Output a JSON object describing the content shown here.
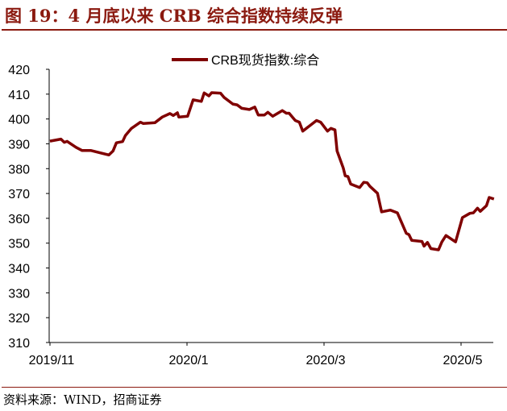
{
  "title": "图 19：4 月底以来 CRB 综合指数持续反弹",
  "source": "资料来源：WIND，招商证券",
  "colors": {
    "line": "#800000",
    "title": "#8b1a10"
  },
  "chart_data": {
    "type": "line",
    "title": "图 19：4 月底以来 CRB 综合指数持续反弹",
    "xlabel": "",
    "ylabel": "",
    "ylim": [
      310,
      420
    ],
    "yticks": [
      310,
      320,
      330,
      340,
      350,
      360,
      370,
      380,
      390,
      400,
      410,
      420
    ],
    "xunit": "months since 2019/11",
    "xticks": [
      {
        "x": 0,
        "label": "2019/11"
      },
      {
        "x": 2,
        "label": "2020/1"
      },
      {
        "x": 4,
        "label": "2020/3"
      },
      {
        "x": 6,
        "label": "2020/5"
      }
    ],
    "legend": {
      "position": "top-center"
    },
    "grid": false,
    "series": [
      {
        "name": "CRB现货指数:综合",
        "x": [
          0,
          0.16,
          0.21,
          0.25,
          0.38,
          0.47,
          0.6,
          0.86,
          0.92,
          0.97,
          1.06,
          1.1,
          1.19,
          1.32,
          1.36,
          1.53,
          1.64,
          1.75,
          1.8,
          1.86,
          1.88,
          2.01,
          2.09,
          2.21,
          2.25,
          2.32,
          2.36,
          2.49,
          2.54,
          2.67,
          2.73,
          2.8,
          2.91,
          2.99,
          3.04,
          3.13,
          3.18,
          3.25,
          3.39,
          3.45,
          3.49,
          3.58,
          3.64,
          3.69,
          3.89,
          3.95,
          4.05,
          4.1,
          4.16,
          4.19,
          4.28,
          4.31,
          4.35,
          4.39,
          4.52,
          4.58,
          4.63,
          4.67,
          4.78,
          4.84,
          4.97,
          5.07,
          5.2,
          5.24,
          5.28,
          5.43,
          5.46,
          5.51,
          5.56,
          5.67,
          5.72,
          5.78,
          5.92,
          6.02,
          6.13,
          6.18,
          6.24,
          6.28,
          6.37,
          6.41,
          6.48
        ],
        "y": [
          391.1,
          391.9,
          390.6,
          391.0,
          388.6,
          387.3,
          387.3,
          385.5,
          387.1,
          390.4,
          390.9,
          393.3,
          396.2,
          398.7,
          398.2,
          398.5,
          400.8,
          402.2,
          401.4,
          402.5,
          400.8,
          401.1,
          407.7,
          407.1,
          410.5,
          409.3,
          410.6,
          410.4,
          408.7,
          406.0,
          405.7,
          404.3,
          403.8,
          404.8,
          401.6,
          401.6,
          402.7,
          401.1,
          403.4,
          402.3,
          402.3,
          399.4,
          398.7,
          395.1,
          399.4,
          398.7,
          395.1,
          396.2,
          395.6,
          387.1,
          380.3,
          377.1,
          376.8,
          373.8,
          372.4,
          374.5,
          374.3,
          372.9,
          370.1,
          362.6,
          363.3,
          362.2,
          354.0,
          353.4,
          351.1,
          350.7,
          348.8,
          350.3,
          347.8,
          347.3,
          350.5,
          353.1,
          350.5,
          360.3,
          362.0,
          362.2,
          364.1,
          362.8,
          365.1,
          368.4,
          367.8
        ]
      }
    ]
  }
}
